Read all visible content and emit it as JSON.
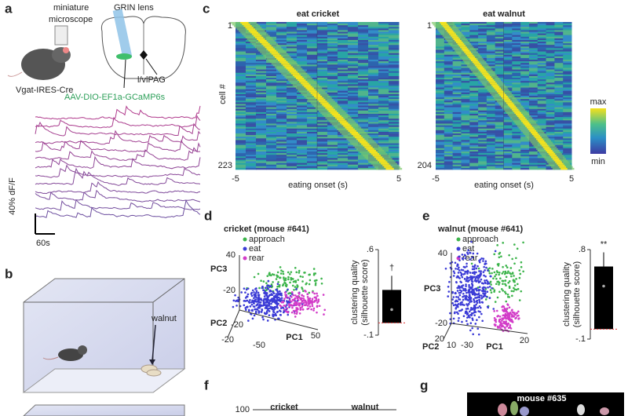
{
  "a": {
    "label": "a",
    "microscope": [
      "miniature",
      "microscope"
    ],
    "lens": "GRIN lens",
    "mouse_line": "Vgat-IRES-Cre",
    "region": "l/vlPAG",
    "virus": "AAV-DIO-EF1a-GCaMP6s",
    "scale_y": "40% dF/F",
    "scale_x": "60s"
  },
  "b": {
    "label": "b",
    "object": "walnut"
  },
  "c": {
    "label": "c",
    "ylabel": "cell #",
    "colorbar": {
      "max": "max",
      "min": "min"
    },
    "heatmaps": [
      {
        "title": "eat cricket",
        "first_cell": "1",
        "last_cell": "223",
        "x_start": "-5",
        "x_end": "5",
        "xlabel": "eating onset (s)"
      },
      {
        "title": "eat walnut",
        "first_cell": "1",
        "last_cell": "204",
        "x_start": "-5",
        "x_end": "5",
        "xlabel": "eating onset (s)"
      }
    ]
  },
  "d": {
    "label": "d",
    "title": "cricket (mouse #641)",
    "legend": [
      "approach",
      "eat",
      "rear"
    ],
    "pca_labels": [
      "40",
      "PC3",
      "-20",
      "PC2",
      "-20",
      "-20",
      "-50",
      "PC1",
      "50"
    ],
    "bar": {
      "ylim": [
        -0.1,
        0.6
      ],
      "yticks": [
        {
          "value": 0.6,
          "label": ".6"
        },
        {
          "value": -0.1,
          "label": "-.1"
        }
      ],
      "ylabel": [
        "clustering quality",
        "(silhouette score)"
      ],
      "value": 0.27,
      "significance": "†",
      "color": "#000000"
    }
  },
  "e": {
    "label": "e",
    "title": "walnut (mouse #641)",
    "legend": [
      "approach",
      "eat",
      "rear"
    ],
    "pca_labels": [
      "40",
      "PC3",
      "-20",
      "PC2",
      "20",
      "10",
      "-30",
      "PC1",
      "20"
    ],
    "bar": {
      "ylim": [
        -0.1,
        0.8
      ],
      "yticks": [
        {
          "value": 0.8,
          "label": ".8"
        },
        {
          "value": -0.1,
          "label": "-.1"
        }
      ],
      "ylabel": [
        "clustering quality",
        "(silhouette score)"
      ],
      "value": 0.63,
      "significance": "**",
      "color": "#000000"
    }
  },
  "f": {
    "label": "f",
    "ytick": "100",
    "titles": [
      "cricket",
      "walnut"
    ]
  },
  "g": {
    "label": "g",
    "title": "mouse #635"
  }
}
